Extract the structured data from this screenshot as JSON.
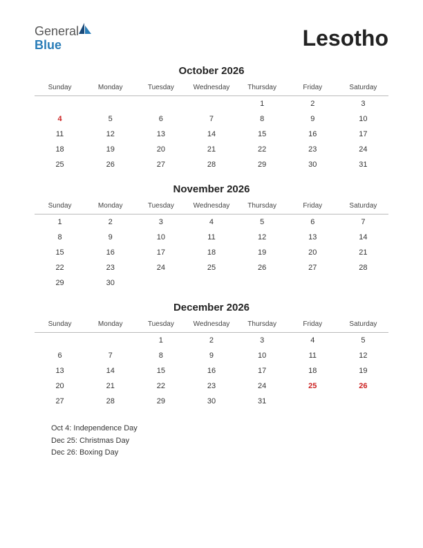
{
  "logo": {
    "general": "General",
    "blue": "Blue"
  },
  "country": "Lesotho",
  "weekdays": [
    "Sunday",
    "Monday",
    "Tuesday",
    "Wednesday",
    "Thursday",
    "Friday",
    "Saturday"
  ],
  "colors": {
    "text": "#333333",
    "holiday": "#cc2222",
    "logo_gray": "#555555",
    "logo_blue": "#2a7db8",
    "border": "#bbbbbb",
    "background": "#ffffff"
  },
  "months": [
    {
      "title": "October 2026",
      "weeks": [
        [
          "",
          "",
          "",
          "",
          "1",
          "2",
          "3"
        ],
        [
          "4",
          "5",
          "6",
          "7",
          "8",
          "9",
          "10"
        ],
        [
          "11",
          "12",
          "13",
          "14",
          "15",
          "16",
          "17"
        ],
        [
          "18",
          "19",
          "20",
          "21",
          "22",
          "23",
          "24"
        ],
        [
          "25",
          "26",
          "27",
          "28",
          "29",
          "30",
          "31"
        ]
      ],
      "holidays": [
        "4"
      ]
    },
    {
      "title": "November 2026",
      "weeks": [
        [
          "1",
          "2",
          "3",
          "4",
          "5",
          "6",
          "7"
        ],
        [
          "8",
          "9",
          "10",
          "11",
          "12",
          "13",
          "14"
        ],
        [
          "15",
          "16",
          "17",
          "18",
          "19",
          "20",
          "21"
        ],
        [
          "22",
          "23",
          "24",
          "25",
          "26",
          "27",
          "28"
        ],
        [
          "29",
          "30",
          "",
          "",
          "",
          "",
          ""
        ]
      ],
      "holidays": []
    },
    {
      "title": "December 2026",
      "weeks": [
        [
          "",
          "",
          "1",
          "2",
          "3",
          "4",
          "5"
        ],
        [
          "6",
          "7",
          "8",
          "9",
          "10",
          "11",
          "12"
        ],
        [
          "13",
          "14",
          "15",
          "16",
          "17",
          "18",
          "19"
        ],
        [
          "20",
          "21",
          "22",
          "23",
          "24",
          "25",
          "26"
        ],
        [
          "27",
          "28",
          "29",
          "30",
          "31",
          "",
          ""
        ]
      ],
      "holidays": [
        "25",
        "26"
      ]
    }
  ],
  "holiday_notes": [
    "Oct 4: Independence Day",
    "Dec 25: Christmas Day",
    "Dec 26: Boxing Day"
  ]
}
